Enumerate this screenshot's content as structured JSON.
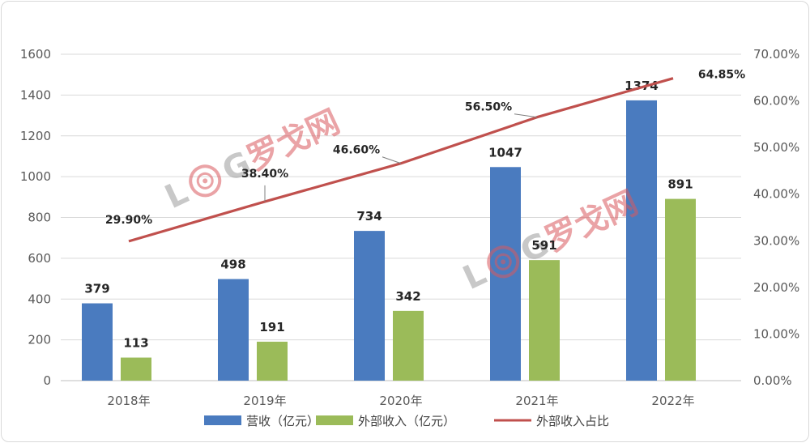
{
  "chart_data": {
    "type": "bar",
    "categories": [
      "2018年",
      "2019年",
      "2020年",
      "2021年",
      "2022年"
    ],
    "series": [
      {
        "name": "营收（亿元）",
        "kind": "bar",
        "axis": "left",
        "color": "#4a7bbf",
        "values": [
          379,
          498,
          734,
          1047,
          1374
        ]
      },
      {
        "name": "外部收入（亿元）",
        "kind": "bar",
        "axis": "left",
        "color": "#9bbb59",
        "values": [
          113,
          191,
          342,
          591,
          891
        ]
      },
      {
        "name": "外部收入占比",
        "kind": "line",
        "axis": "right",
        "color": "#c0504d",
        "values": [
          29.9,
          38.4,
          46.6,
          56.5,
          64.85
        ]
      }
    ],
    "point_labels": [
      "29.90%",
      "38.40%",
      "46.60%",
      "56.50%",
      "64.85%"
    ],
    "y_left": {
      "min": 0,
      "max": 1600,
      "ticks": [
        "0",
        "200",
        "400",
        "600",
        "800",
        "1000",
        "1200",
        "1400",
        "1600"
      ]
    },
    "y_right": {
      "min": 0,
      "max": 70,
      "ticks": [
        "0.00%",
        "10.00%",
        "20.00%",
        "30.00%",
        "40.00%",
        "50.00%",
        "60.00%",
        "70.00%"
      ]
    },
    "grid": true,
    "legend_position": "bottom",
    "title": "",
    "xlabel": "",
    "ylabel": ""
  },
  "watermark": {
    "text": "罗戈网",
    "letters": [
      "L",
      "G"
    ],
    "color": "#d9595f"
  }
}
